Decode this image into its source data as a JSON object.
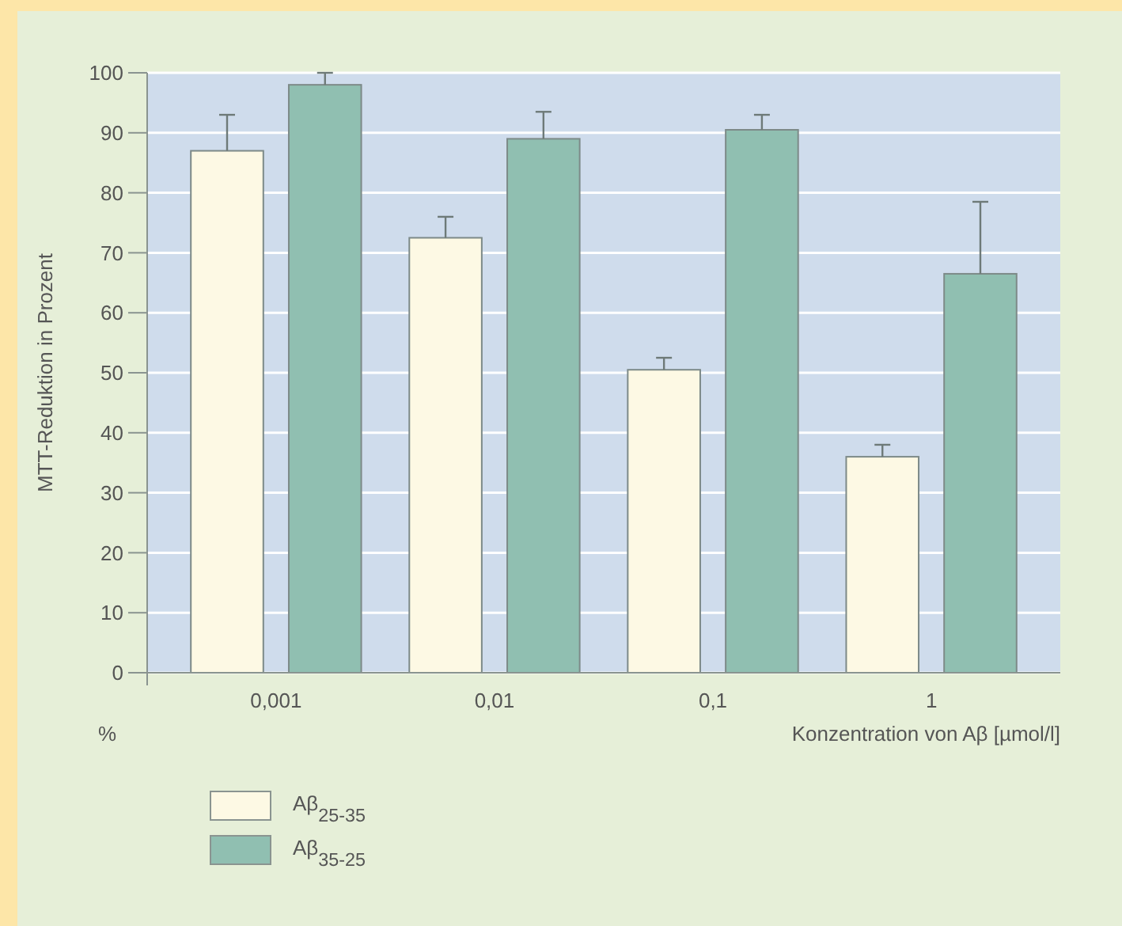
{
  "chart_data": {
    "type": "bar",
    "categories": [
      "0,001",
      "0,01",
      "0,1",
      "1"
    ],
    "series": [
      {
        "name": "Aβ$_{25-35}$",
        "color": "#fdf9e4",
        "values": [
          87,
          72.5,
          50.5,
          36
        ],
        "errors": [
          [
            87,
            93
          ],
          [
            72.5,
            76
          ],
          [
            50.5,
            52.5
          ],
          [
            36,
            38
          ]
        ]
      },
      {
        "name": "Aβ$_{35-25}$",
        "color": "#90bfb1",
        "values": [
          98,
          89,
          90.5,
          66.5
        ],
        "errors": [
          [
            98,
            100
          ],
          [
            89,
            93.5
          ],
          [
            90.5,
            93
          ],
          [
            66.5,
            78.5
          ]
        ]
      }
    ],
    "ylabel": "MTT-Reduktion in Prozent",
    "xlabel": "Konzentration von Aβ [µmol/l]",
    "annotations": [
      "%"
    ],
    "ylim": [
      0,
      100
    ],
    "yticks": [
      0,
      10,
      20,
      30,
      40,
      50,
      60,
      70,
      80,
      90,
      100
    ],
    "grid": "y",
    "legend": "bottom left"
  }
}
